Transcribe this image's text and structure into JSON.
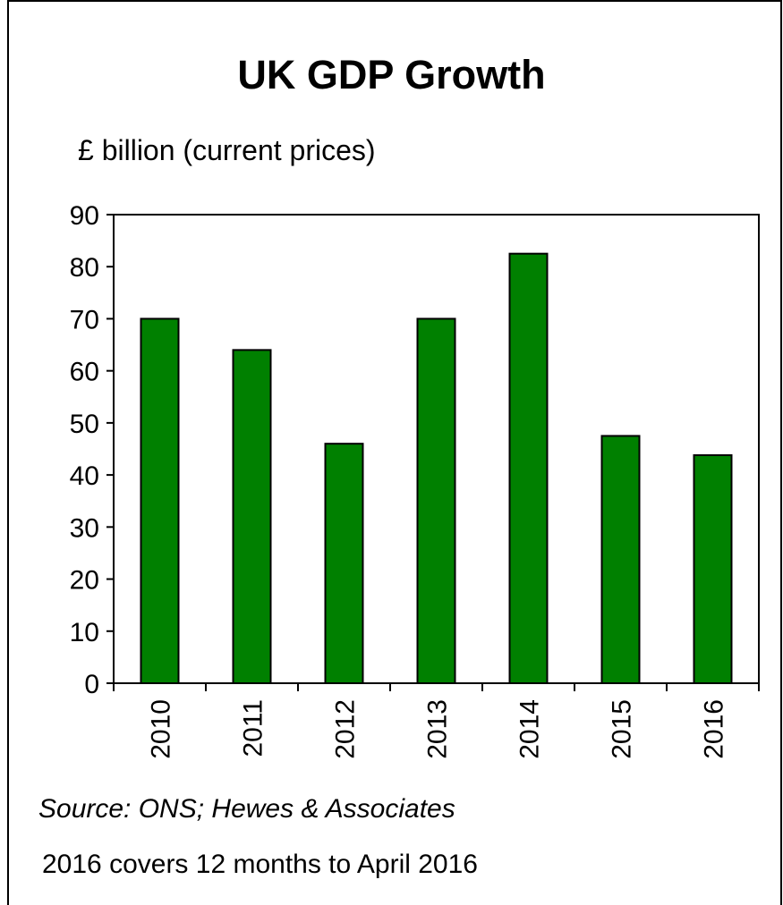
{
  "chart_data": {
    "type": "bar",
    "title": "UK GDP Growth",
    "ylabel": "£ billion (current prices)",
    "xlabel": "",
    "categories": [
      "2010",
      "2011",
      "2012",
      "2013",
      "2014",
      "2015",
      "2016"
    ],
    "values": [
      70,
      64,
      46,
      70,
      82.5,
      47.5,
      43.8
    ],
    "ylim": [
      0,
      90
    ],
    "yticks": [
      "0",
      "10",
      "20",
      "30",
      "40",
      "50",
      "60",
      "70",
      "80",
      "90"
    ],
    "grid": false,
    "legend": "none",
    "bar_color": "#008000",
    "source": "Source: ONS; Hewes & Associates",
    "note": "2016 covers 12 months to April 2016"
  }
}
